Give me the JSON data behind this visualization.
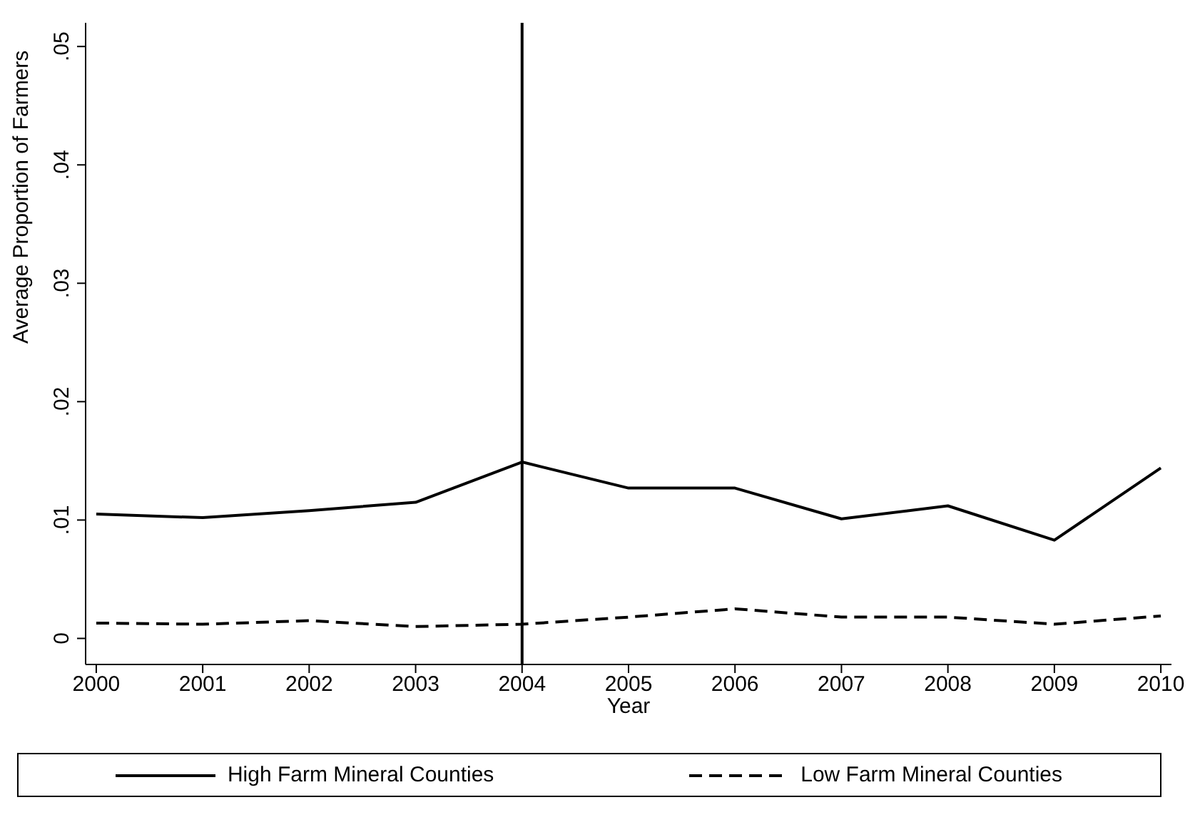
{
  "chart_data": {
    "type": "line",
    "xlabel": "Year",
    "ylabel": "Average Proportion of Farmers",
    "x": [
      2000,
      2001,
      2002,
      2003,
      2004,
      2005,
      2006,
      2007,
      2008,
      2009,
      2010
    ],
    "series": [
      {
        "name": "High Farm Mineral Counties",
        "color": "#000000",
        "line_style": "solid",
        "values": [
          0.0105,
          0.0102,
          0.0108,
          0.0115,
          0.0149,
          0.0127,
          0.0127,
          0.0101,
          0.0112,
          0.0083,
          0.0144
        ]
      },
      {
        "name": "Low Farm Mineral Counties",
        "color": "#000000",
        "line_style": "dashed",
        "values": [
          0.0013,
          0.0012,
          0.0015,
          0.001,
          0.0012,
          0.0018,
          0.0025,
          0.0018,
          0.0018,
          0.0012,
          0.0019
        ]
      }
    ],
    "xlim": [
      1999.9,
      2010.1
    ],
    "xticks": [
      2000,
      2001,
      2002,
      2003,
      2004,
      2005,
      2006,
      2007,
      2008,
      2009,
      2010
    ],
    "ylim": [
      -0.0022,
      0.052
    ],
    "yticks": [
      {
        "value": 0,
        "label": "0"
      },
      {
        "value": 0.01,
        "label": ".01"
      },
      {
        "value": 0.02,
        "label": ".02"
      },
      {
        "value": 0.03,
        "label": ".03"
      },
      {
        "value": 0.04,
        "label": ".04"
      },
      {
        "value": 0.05,
        "label": ".05"
      }
    ],
    "ref_lines": [
      {
        "axis": "x",
        "value": 2004,
        "color": "#000000"
      }
    ],
    "grid": false,
    "legend": "bottom",
    "marker": "none"
  }
}
